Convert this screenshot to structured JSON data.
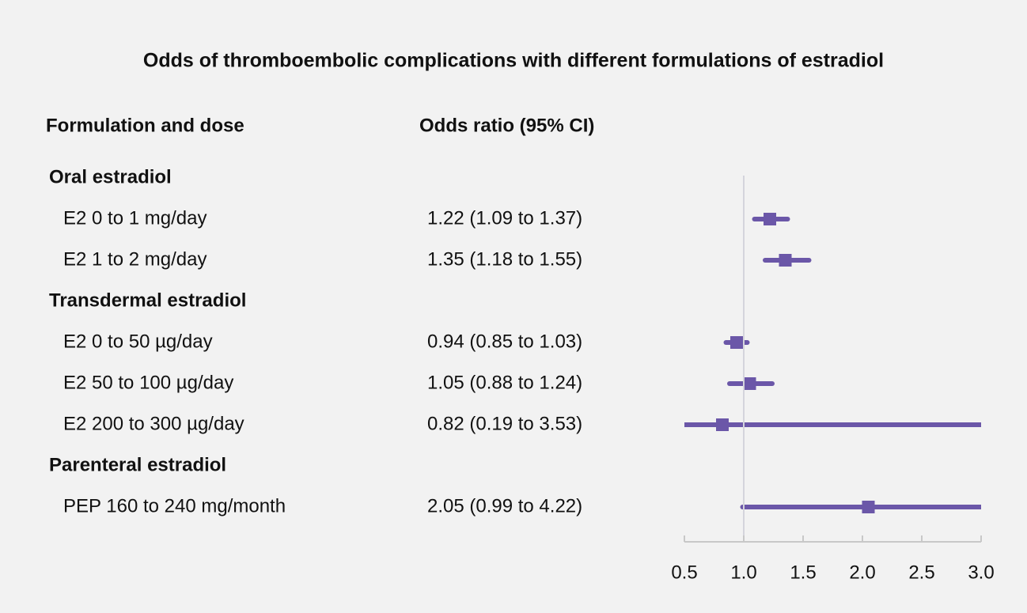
{
  "chart_data": {
    "type": "forest",
    "title": "Odds of thromboembolic complications with different formulations of estradiol",
    "column_headers": [
      "Formulation and dose",
      "Odds ratio (95% CI)"
    ],
    "color": "#6b57a8",
    "reference": 1,
    "xlim": [
      0.5,
      3.0
    ],
    "xticks": [
      0.5,
      {
        "value": 1,
        "label": "1.0"
      },
      1.5,
      {
        "value": 2,
        "label": "2.0"
      },
      2.5,
      {
        "value": 3,
        "label": "3.0"
      }
    ],
    "groups": [
      {
        "name": "Oral estradiol",
        "categories": [
          "E2 0 to 1 mg/day",
          "E2 1 to 2 mg/day"
        ],
        "values": [
          1.22,
          1.35
        ],
        "lower": [
          1.09,
          1.18
        ],
        "upper": [
          1.37,
          1.55
        ],
        "value_labels": [
          "1.22 (1.09 to 1.37)",
          "1.35 (1.18 to 1.55)"
        ]
      },
      {
        "name": "Transdermal estradiol",
        "categories": [
          "E2 0 to 50 µg/day",
          "E2 50 to 100 µg/day",
          "E2 200 to 300 µg/day"
        ],
        "values": [
          0.94,
          1.05,
          0.82
        ],
        "lower": [
          0.85,
          0.88,
          0.19
        ],
        "upper": [
          1.03,
          1.24,
          3.53
        ],
        "value_labels": [
          "0.94 (0.85 to 1.03)",
          "1.05 (0.88 to 1.24)",
          "0.82 (0.19 to 3.53)"
        ]
      },
      {
        "name": "Parenteral estradiol",
        "categories": [
          "PEP 160 to 240 mg/month"
        ],
        "values": [
          2.05
        ],
        "lower": [
          0.99
        ],
        "upper": [
          4.22
        ],
        "value_labels": [
          "2.05 (0.99 to 4.22)"
        ]
      }
    ]
  }
}
